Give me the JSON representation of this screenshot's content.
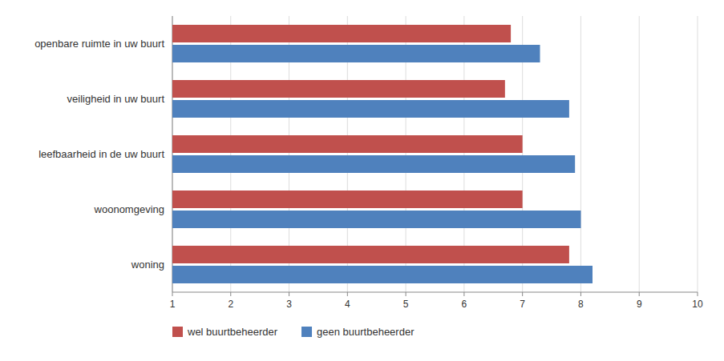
{
  "chart_data": {
    "type": "bar",
    "orientation": "horizontal",
    "categories": [
      "woning",
      "woonomgeving",
      "leefbaarheid in de uw buurt",
      "veiligheid in uw buurt",
      "openbare ruimte in uw buurt"
    ],
    "series": [
      {
        "name": "wel buurtbeheerder",
        "color": "#C0504D",
        "values": [
          7.8,
          7.0,
          7.0,
          6.7,
          6.8
        ]
      },
      {
        "name": "geen buurtbeheerder",
        "color": "#4F81BD",
        "values": [
          8.2,
          8.0,
          7.9,
          7.8,
          7.3
        ]
      }
    ],
    "xlim": [
      1,
      10
    ],
    "xticks": [
      1,
      2,
      3,
      4,
      5,
      6,
      7,
      8,
      9,
      10
    ],
    "grid": true,
    "legend": "bottom"
  }
}
